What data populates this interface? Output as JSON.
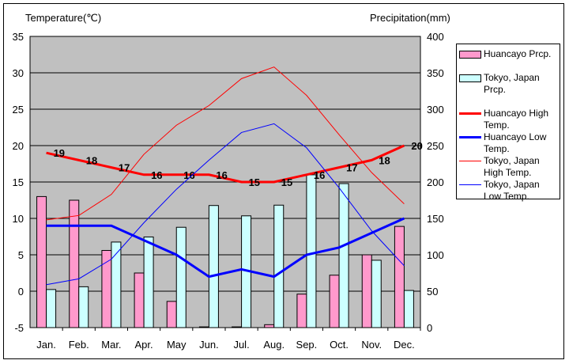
{
  "chart_data": {
    "type": "bar+line",
    "categories": [
      "Jan.",
      "Feb.",
      "Mar.",
      "Apr.",
      "May",
      "Jun.",
      "Jul.",
      "Aug.",
      "Sep.",
      "Oct.",
      "Nov.",
      "Dec."
    ],
    "y_left": {
      "label": "Temperature(℃)",
      "range": [
        -5,
        35
      ],
      "ticks": [
        -5,
        0,
        5,
        10,
        15,
        20,
        25,
        30,
        35
      ]
    },
    "y_right": {
      "label": "Precipitation(mm)",
      "range": [
        0,
        400
      ],
      "ticks": [
        0,
        50,
        100,
        150,
        200,
        250,
        300,
        350,
        400
      ]
    },
    "grid": true,
    "legend_position": "right",
    "series": [
      {
        "name": "Huancayo Prcp.",
        "type": "bar",
        "axis": "right",
        "color": "#ff99cc",
        "values": [
          180,
          175,
          106,
          75,
          36,
          1,
          1,
          4,
          46,
          72,
          100,
          139
        ]
      },
      {
        "name": "Tokyo, Japan Prcp.",
        "type": "bar",
        "axis": "right",
        "color": "#ccffff",
        "values": [
          52.3,
          56.1,
          117.5,
          124.5,
          137.8,
          167.7,
          153.5,
          168.2,
          209.9,
          197.8,
          92.5,
          51.0
        ]
      },
      {
        "name": "Huancayo High Temp.",
        "type": "line",
        "axis": "left",
        "color": "#ff0000",
        "thick": true,
        "labels": true,
        "values": [
          19,
          18,
          17,
          16,
          16,
          16,
          15,
          15,
          16,
          17,
          18,
          20
        ]
      },
      {
        "name": "Huancayo Low Temp.",
        "type": "line",
        "axis": "left",
        "color": "#0000ff",
        "thick": true,
        "labels": false,
        "values": [
          9,
          9,
          9,
          7,
          5,
          2,
          3,
          2,
          5,
          6,
          8,
          10
        ]
      },
      {
        "name": "Tokyo, Japan High Temp.",
        "type": "line",
        "axis": "left",
        "color": "#ff0000",
        "thick": false,
        "labels": false,
        "values": [
          9.8,
          10.4,
          13.3,
          18.8,
          22.8,
          25.5,
          29.2,
          30.8,
          26.9,
          21.5,
          16.3,
          12.0
        ]
      },
      {
        "name": "Tokyo, Japan Low Temp.",
        "type": "line",
        "axis": "left",
        "color": "#0000ff",
        "thick": false,
        "labels": false,
        "values": [
          0.9,
          1.7,
          4.4,
          9.4,
          14.0,
          18.0,
          21.8,
          23.0,
          19.7,
          14.2,
          8.3,
          3.5
        ]
      }
    ]
  }
}
